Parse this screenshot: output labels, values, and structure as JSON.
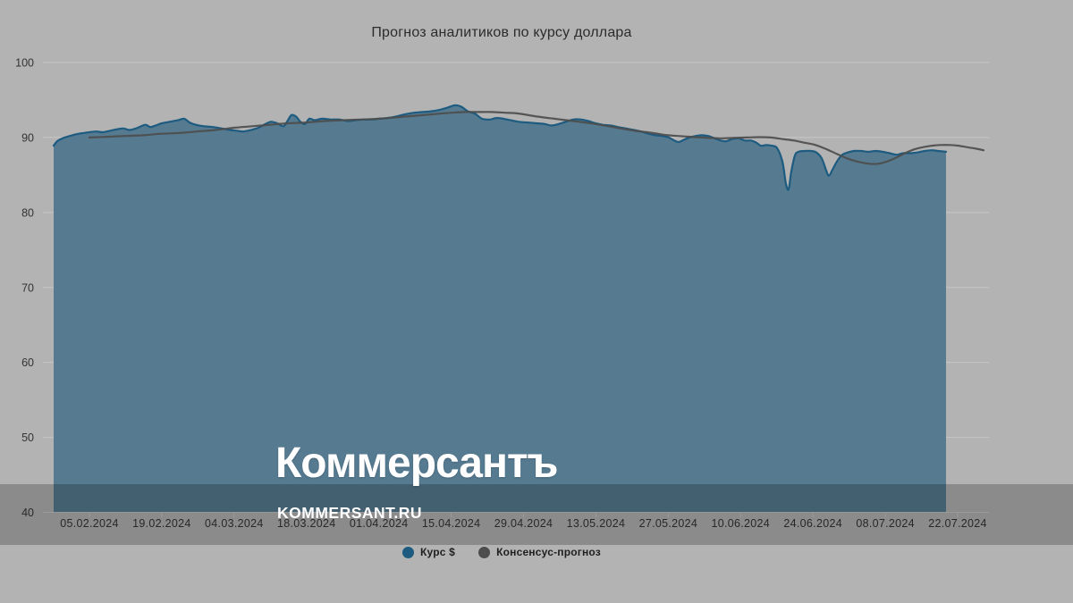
{
  "page": {
    "background": "#b3b3b3"
  },
  "watermark": {
    "wordmark": "Коммерсантъ",
    "domain": "KOMMERSANT.RU"
  },
  "colors": {
    "background": "#b3b3b3",
    "grid": "#c7c7c7",
    "axis_text": "#333333",
    "title_text": "#2c2c2c",
    "watermark_band": "rgba(0,0,0,0.22)",
    "logo_text": "#ffffff"
  },
  "chart_data": {
    "type": "area",
    "title": "Прогноз аналитиков по курсу доллара",
    "xlabel": "",
    "ylabel": "",
    "ylim": [
      40,
      100
    ],
    "yticks": [
      40,
      50,
      60,
      70,
      80,
      90,
      100
    ],
    "grid": true,
    "legend_position": "bottom",
    "x_tick_labels": [
      "05.02.2024",
      "19.02.2024",
      "04.03.2024",
      "18.03.2024",
      "01.04.2024",
      "15.04.2024",
      "29.04.2024",
      "13.05.2024",
      "27.05.2024",
      "10.06.2024",
      "24.06.2024",
      "08.07.2024",
      "22.07.2024"
    ],
    "x_axis_note": "x of points is horizontal position in px; 05.02.2024 is at x=100, ticks every 14 days = 80.92 px (≈5.78 px/day); series start ≈29.01.2024, end ≈late July 2024",
    "series": [
      {
        "name": "Курс $",
        "type": "area",
        "color": "#1d5b80",
        "fill": "#567b91",
        "points": [
          [
            60,
            88.9
          ],
          [
            64,
            89.5
          ],
          [
            70,
            89.9
          ],
          [
            78,
            90.2
          ],
          [
            88,
            90.5
          ],
          [
            100,
            90.7
          ],
          [
            108,
            90.8
          ],
          [
            115,
            90.7
          ],
          [
            123,
            90.9
          ],
          [
            131,
            91.1
          ],
          [
            138,
            91.2
          ],
          [
            145,
            91.0
          ],
          [
            152,
            91.2
          ],
          [
            158,
            91.5
          ],
          [
            163,
            91.7
          ],
          [
            168,
            91.4
          ],
          [
            174,
            91.6
          ],
          [
            181,
            91.9
          ],
          [
            190,
            92.1
          ],
          [
            199,
            92.3
          ],
          [
            206,
            92.5
          ],
          [
            212,
            92.0
          ],
          [
            219,
            91.7
          ],
          [
            228,
            91.5
          ],
          [
            238,
            91.4
          ],
          [
            248,
            91.2
          ],
          [
            257,
            91.0
          ],
          [
            265,
            90.9
          ],
          [
            272,
            90.8
          ],
          [
            281,
            91.0
          ],
          [
            289,
            91.3
          ],
          [
            297,
            91.8
          ],
          [
            303,
            92.1
          ],
          [
            310,
            91.9
          ],
          [
            317,
            91.5
          ],
          [
            322,
            92.3
          ],
          [
            326,
            93.0
          ],
          [
            331,
            92.8
          ],
          [
            336,
            92.1
          ],
          [
            341,
            91.8
          ],
          [
            346,
            92.5
          ],
          [
            352,
            92.3
          ],
          [
            360,
            92.5
          ],
          [
            370,
            92.4
          ],
          [
            380,
            92.4
          ],
          [
            389,
            92.2
          ],
          [
            397,
            92.3
          ],
          [
            406,
            92.4
          ],
          [
            415,
            92.4
          ],
          [
            424,
            92.5
          ],
          [
            433,
            92.6
          ],
          [
            443,
            92.8
          ],
          [
            453,
            93.1
          ],
          [
            463,
            93.3
          ],
          [
            473,
            93.4
          ],
          [
            483,
            93.5
          ],
          [
            492,
            93.7
          ],
          [
            501,
            94.0
          ],
          [
            509,
            94.3
          ],
          [
            516,
            94.1
          ],
          [
            523,
            93.5
          ],
          [
            531,
            93.2
          ],
          [
            539,
            92.5
          ],
          [
            548,
            92.4
          ],
          [
            555,
            92.6
          ],
          [
            563,
            92.5
          ],
          [
            571,
            92.3
          ],
          [
            580,
            92.1
          ],
          [
            590,
            92.0
          ],
          [
            600,
            91.9
          ],
          [
            609,
            91.8
          ],
          [
            617,
            91.6
          ],
          [
            625,
            91.8
          ],
          [
            633,
            92.1
          ],
          [
            641,
            92.4
          ],
          [
            650,
            92.4
          ],
          [
            658,
            92.2
          ],
          [
            666,
            91.9
          ],
          [
            674,
            91.7
          ],
          [
            683,
            91.6
          ],
          [
            691,
            91.4
          ],
          [
            700,
            91.2
          ],
          [
            709,
            91.0
          ],
          [
            717,
            90.8
          ],
          [
            725,
            90.5
          ],
          [
            733,
            90.3
          ],
          [
            741,
            90.2
          ],
          [
            748,
            90.0
          ],
          [
            754,
            89.6
          ],
          [
            759,
            89.4
          ],
          [
            765,
            89.7
          ],
          [
            771,
            90.0
          ],
          [
            778,
            90.2
          ],
          [
            785,
            90.3
          ],
          [
            792,
            90.2
          ],
          [
            799,
            89.9
          ],
          [
            806,
            89.6
          ],
          [
            812,
            89.5
          ],
          [
            819,
            89.8
          ],
          [
            826,
            89.9
          ],
          [
            833,
            89.6
          ],
          [
            840,
            89.6
          ],
          [
            846,
            89.3
          ],
          [
            851,
            88.9
          ],
          [
            857,
            89.0
          ],
          [
            863,
            88.9
          ],
          [
            869,
            88.6
          ],
          [
            875,
            86.8
          ],
          [
            879,
            83.8
          ],
          [
            882,
            83.1
          ],
          [
            885,
            85.5
          ],
          [
            889,
            87.6
          ],
          [
            893,
            88.1
          ],
          [
            900,
            88.2
          ],
          [
            907,
            88.2
          ],
          [
            913,
            88.0
          ],
          [
            919,
            87.2
          ],
          [
            924,
            85.6
          ],
          [
            927,
            84.9
          ],
          [
            931,
            85.7
          ],
          [
            936,
            86.8
          ],
          [
            942,
            87.7
          ],
          [
            948,
            88.0
          ],
          [
            955,
            88.2
          ],
          [
            963,
            88.2
          ],
          [
            971,
            88.1
          ],
          [
            979,
            88.2
          ],
          [
            987,
            88.1
          ],
          [
            995,
            87.9
          ],
          [
            1003,
            87.7
          ],
          [
            1010,
            87.9
          ],
          [
            1018,
            87.9
          ],
          [
            1026,
            88.0
          ],
          [
            1034,
            88.2
          ],
          [
            1042,
            88.3
          ],
          [
            1049,
            88.2
          ],
          [
            1058,
            88.1
          ]
        ]
      },
      {
        "name": "Консенсус-прогноз",
        "type": "line",
        "color": "#4d4d4d",
        "points": [
          [
            100,
            90.0
          ],
          [
            120,
            90.1
          ],
          [
            140,
            90.2
          ],
          [
            160,
            90.3
          ],
          [
            181,
            90.5
          ],
          [
            200,
            90.6
          ],
          [
            220,
            90.8
          ],
          [
            241,
            91.0
          ],
          [
            262,
            91.3
          ],
          [
            282,
            91.5
          ],
          [
            302,
            91.7
          ],
          [
            322,
            91.9
          ],
          [
            343,
            92.0
          ],
          [
            363,
            92.2
          ],
          [
            383,
            92.3
          ],
          [
            403,
            92.4
          ],
          [
            424,
            92.5
          ],
          [
            444,
            92.7
          ],
          [
            464,
            92.9
          ],
          [
            484,
            93.1
          ],
          [
            505,
            93.3
          ],
          [
            520,
            93.4
          ],
          [
            535,
            93.4
          ],
          [
            550,
            93.4
          ],
          [
            565,
            93.3
          ],
          [
            580,
            93.2
          ],
          [
            600,
            92.8
          ],
          [
            620,
            92.5
          ],
          [
            641,
            92.2
          ],
          [
            666,
            91.8
          ],
          [
            690,
            91.3
          ],
          [
            710,
            90.9
          ],
          [
            730,
            90.6
          ],
          [
            747,
            90.3
          ],
          [
            765,
            90.15
          ],
          [
            785,
            90.0
          ],
          [
            805,
            89.9
          ],
          [
            820,
            89.95
          ],
          [
            835,
            90.0
          ],
          [
            850,
            90.05
          ],
          [
            862,
            90.0
          ],
          [
            875,
            89.8
          ],
          [
            888,
            89.6
          ],
          [
            900,
            89.3
          ],
          [
            912,
            89.0
          ],
          [
            925,
            88.4
          ],
          [
            938,
            87.7
          ],
          [
            950,
            87.1
          ],
          [
            962,
            86.7
          ],
          [
            972,
            86.5
          ],
          [
            982,
            86.5
          ],
          [
            992,
            86.8
          ],
          [
            1002,
            87.3
          ],
          [
            1012,
            87.9
          ],
          [
            1022,
            88.4
          ],
          [
            1032,
            88.7
          ],
          [
            1042,
            88.9
          ],
          [
            1052,
            89.0
          ],
          [
            1062,
            89.0
          ],
          [
            1072,
            88.9
          ],
          [
            1082,
            88.7
          ],
          [
            1092,
            88.5
          ],
          [
            1100,
            88.3
          ]
        ]
      }
    ]
  }
}
